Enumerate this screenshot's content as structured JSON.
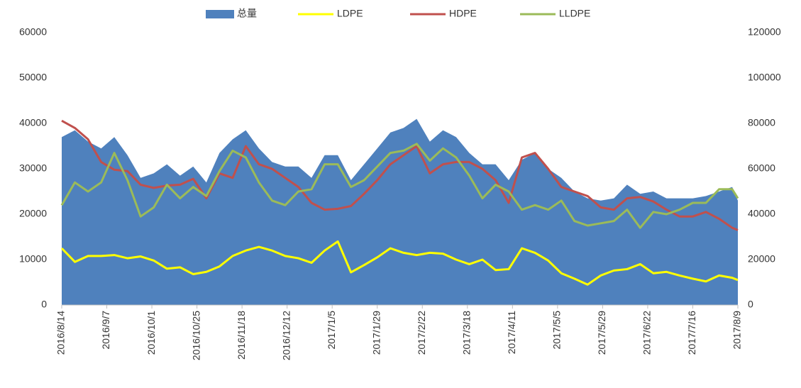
{
  "chart_data": {
    "type": "line",
    "x": [
      "2016/8/14",
      "2016/8/21",
      "2016/8/28",
      "2016/9/4",
      "2016/9/11",
      "2016/9/18",
      "2016/9/25",
      "2016/10/2",
      "2016/10/9",
      "2016/10/16",
      "2016/10/23",
      "2016/10/30",
      "2016/11/6",
      "2016/11/13",
      "2016/11/20",
      "2016/11/27",
      "2016/12/4",
      "2016/12/11",
      "2016/12/18",
      "2016/12/25",
      "2017/1/1",
      "2017/1/8",
      "2017/1/15",
      "2017/1/22",
      "2017/1/29",
      "2017/2/5",
      "2017/2/12",
      "2017/2/19",
      "2017/2/26",
      "2017/3/5",
      "2017/3/12",
      "2017/3/19",
      "2017/3/26",
      "2017/4/2",
      "2017/4/9",
      "2017/4/16",
      "2017/4/23",
      "2017/4/30",
      "2017/5/7",
      "2017/5/14",
      "2017/5/21",
      "2017/5/28",
      "2017/6/4",
      "2017/6/11",
      "2017/6/18",
      "2017/6/25",
      "2017/7/2",
      "2017/7/9",
      "2017/7/16",
      "2017/7/23",
      "2017/7/30",
      "2017/8/6",
      "2017/8/9"
    ],
    "xlim": [
      "2016/8/14",
      "2017/8/9"
    ],
    "xticks": [
      "2016/8/14",
      "2016/9/7",
      "2016/10/1",
      "2016/10/25",
      "2016/11/18",
      "2016/12/12",
      "2017/1/5",
      "2017/1/29",
      "2017/2/22",
      "2017/3/18",
      "2017/4/11",
      "2017/5/5",
      "2017/5/29",
      "2017/6/22",
      "2017/7/16",
      "2017/8/9"
    ],
    "ylim": [
      0,
      60000
    ],
    "yticks": [
      0,
      10000,
      20000,
      30000,
      40000,
      50000,
      60000
    ],
    "y2lim": [
      0,
      120000
    ],
    "y2ticks": [
      0,
      20000,
      40000,
      60000,
      80000,
      100000,
      120000
    ],
    "grid": false,
    "legend": "top",
    "series": [
      {
        "name": "总量",
        "type": "area",
        "axis": "y2",
        "color": "#4f81bd",
        "values": [
          74000,
          77000,
          72000,
          69000,
          74000,
          66000,
          56000,
          58000,
          62000,
          57000,
          61000,
          54000,
          67000,
          73000,
          77000,
          69000,
          63000,
          61000,
          61000,
          56000,
          66000,
          66000,
          55000,
          62000,
          69000,
          76000,
          78000,
          82000,
          72000,
          77000,
          74000,
          67000,
          62000,
          62000,
          55000,
          64000,
          67000,
          60000,
          56000,
          50000,
          47000,
          46000,
          47000,
          53000,
          49000,
          50000,
          47000,
          47000,
          47000,
          48000,
          50000,
          52000,
          46000
        ]
      },
      {
        "name": "LDPE",
        "type": "line",
        "color": "#ffff00",
        "values": [
          12500,
          9500,
          10800,
          10800,
          11000,
          10300,
          10700,
          9800,
          8000,
          8300,
          6800,
          7300,
          8500,
          10800,
          12000,
          12800,
          12000,
          10800,
          10300,
          9300,
          12000,
          14000,
          7200,
          8800,
          10500,
          12500,
          11500,
          11000,
          11500,
          11300,
          10000,
          9000,
          10000,
          7700,
          7900,
          12500,
          11500,
          9800,
          7000,
          5800,
          4500,
          6500,
          7600,
          7900,
          9000,
          7000,
          7300,
          6500,
          5800,
          5200,
          6500,
          6000,
          5500
        ]
      },
      {
        "name": "HDPE",
        "type": "line",
        "color": "#c0504d",
        "values": [
          40600,
          39000,
          36500,
          31500,
          29800,
          29500,
          26500,
          25800,
          26300,
          26500,
          27800,
          23500,
          29000,
          28000,
          35000,
          31000,
          30000,
          28000,
          26000,
          22500,
          21000,
          21200,
          21800,
          24500,
          27500,
          31000,
          33000,
          35000,
          29000,
          31000,
          31500,
          31500,
          30000,
          27500,
          22500,
          32500,
          33500,
          30000,
          26000,
          25000,
          24000,
          21500,
          21000,
          23500,
          23800,
          22800,
          21000,
          19500,
          19500,
          20500,
          19000,
          17000,
          16500
        ]
      },
      {
        "name": "LLDPE",
        "type": "line",
        "color": "#9bbb59",
        "values": [
          22000,
          27000,
          25000,
          27000,
          33500,
          27500,
          19500,
          21500,
          26500,
          23500,
          26000,
          24000,
          29500,
          34000,
          32500,
          27000,
          23000,
          22000,
          25000,
          25500,
          31000,
          31000,
          26000,
          27500,
          30500,
          33500,
          34000,
          35500,
          31800,
          34500,
          32500,
          28500,
          23500,
          26500,
          25000,
          21000,
          22000,
          21000,
          23000,
          18500,
          17500,
          18000,
          18500,
          21000,
          17000,
          20500,
          20000,
          21000,
          22500,
          22500,
          25500,
          25500,
          23500
        ]
      }
    ]
  }
}
